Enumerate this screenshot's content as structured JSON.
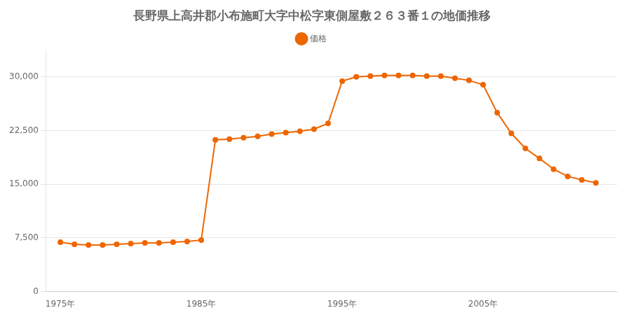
{
  "chart_data": {
    "type": "line",
    "title": "長野県上高井郡小布施町大字中松字東側屋敷２６３番１の地価推移",
    "x": [
      1975,
      1976,
      1977,
      1978,
      1979,
      1980,
      1981,
      1982,
      1983,
      1984,
      1985,
      1986,
      1987,
      1988,
      1989,
      1990,
      1991,
      1992,
      1993,
      1994,
      1995,
      1996,
      1997,
      1998,
      1999,
      2000,
      2001,
      2002,
      2003,
      2004,
      2005,
      2006,
      2007,
      2008,
      2009,
      2010,
      2011,
      2012,
      2013
    ],
    "series": [
      {
        "name": "価格",
        "color": "#ee6600",
        "marker": "circle",
        "values": [
          6900,
          6600,
          6500,
          6500,
          6600,
          6700,
          6800,
          6800,
          6900,
          7000,
          7200,
          21200,
          21300,
          21500,
          21700,
          22000,
          22200,
          22400,
          22700,
          23500,
          29400,
          30000,
          30100,
          30200,
          30200,
          30200,
          30100,
          30100,
          29800,
          29500,
          28900,
          25000,
          22100,
          20000,
          18600,
          17100,
          16100,
          15600,
          15200
        ]
      }
    ],
    "xlim": [
      1974.0,
      2014.5
    ],
    "xticks": [
      {
        "value": 1975,
        "label": "1975年"
      },
      {
        "value": 1985,
        "label": "1985年"
      },
      {
        "value": 1995,
        "label": "1995年"
      },
      {
        "value": 2005,
        "label": "2005年"
      }
    ],
    "ylim": [
      0,
      33750
    ],
    "yticks": [
      0,
      {
        "value": 7500,
        "label": "7,500"
      },
      {
        "value": 15000,
        "label": "15,000"
      },
      {
        "value": 22500,
        "label": "22,500"
      },
      {
        "value": 30000,
        "label": "30,000"
      }
    ],
    "grid": "y",
    "legend": "top"
  }
}
